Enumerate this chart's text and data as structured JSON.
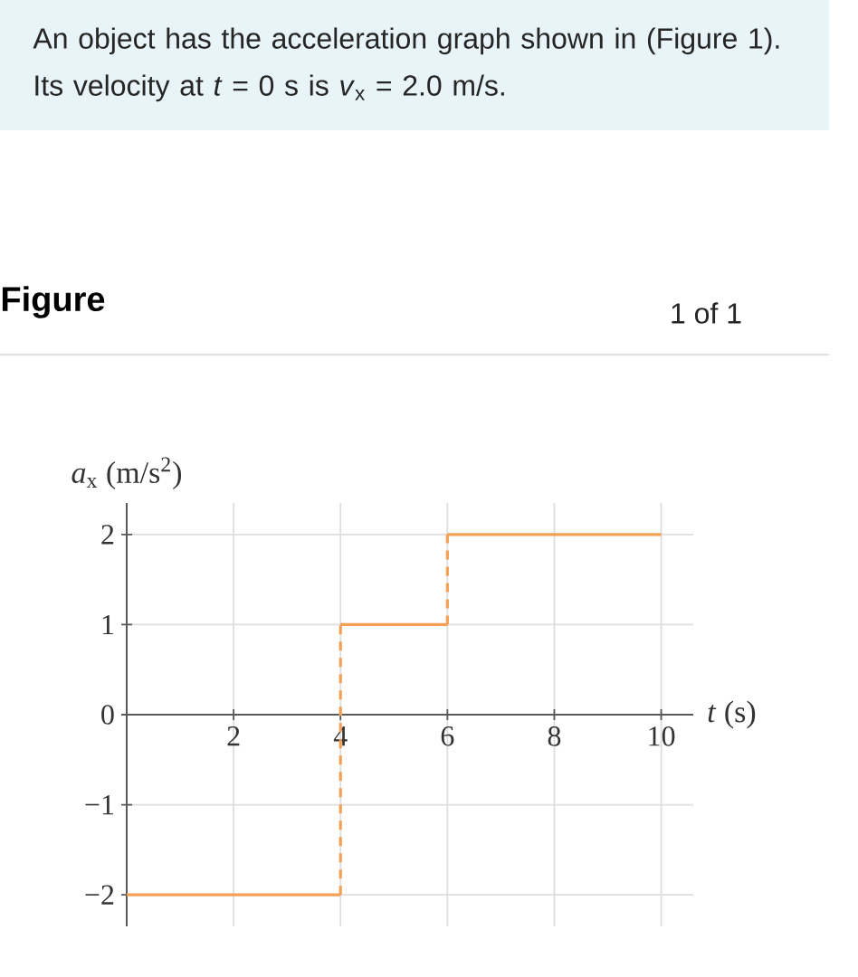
{
  "chart_data": {
    "type": "line",
    "title": "An object has the acceleration graph shown in (Figure 1). Its velocity at *t* = 0 s is *v*$_{x}$ = 2.0 m/s.",
    "subtitle": "Figure",
    "annotations": [
      "1 of 1"
    ],
    "xlabel": "*t* (s)",
    "ylabel": "*a*$_{x}$ (m/s$^{2}$)",
    "series": [
      {
        "color": "#f4a055",
        "x": [
          0,
          4
        ],
        "values": [
          -2,
          -2
        ]
      },
      {
        "color": "#f4a055",
        "x": [
          4,
          6
        ],
        "values": [
          1,
          1
        ]
      },
      {
        "color": "#f4a055",
        "x": [
          6,
          10
        ],
        "values": [
          2,
          2
        ]
      },
      {
        "color": "#f4a055",
        "x": [
          4,
          4
        ],
        "values": [
          -2,
          1
        ],
        "line_style": "dashed"
      },
      {
        "color": "#f4a055",
        "x": [
          6,
          6
        ],
        "values": [
          1,
          2
        ],
        "line_style": "dashed"
      }
    ],
    "xlim": [
      0,
      10.6
    ],
    "xticks": [
      2,
      4,
      6,
      8,
      10
    ],
    "ylim": [
      -2.35,
      2.35
    ],
    "yticks": [
      {
        "value": -2,
        "label": "−2"
      },
      {
        "value": -1,
        "label": "−1"
      },
      0,
      1,
      2
    ],
    "grid": true,
    "line_style": "solid"
  }
}
